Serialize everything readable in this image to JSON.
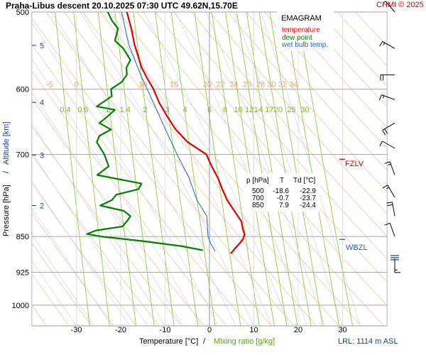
{
  "header": {
    "title": "Praha-Libus   descent   20.10.2025 07:30 UTC   49.62N,15.70E",
    "copyright": "CHMI © 2025"
  },
  "legend": {
    "title": "EMAGRAM",
    "items": [
      {
        "label": "temperature",
        "color": "#ff0000"
      },
      {
        "label": "dew point",
        "color": "#008000"
      },
      {
        "label": "wet bulb temp.",
        "color": "#1a5fd0"
      }
    ]
  },
  "levels_table": {
    "header": [
      "p [hPa]",
      "T",
      "Td [°C]"
    ],
    "rows": [
      [
        "500",
        "-18.6",
        "-22.9"
      ],
      [
        "700",
        "-0.7",
        "-23.7"
      ],
      [
        "850",
        "7.9",
        "-24.4"
      ]
    ]
  },
  "markers": {
    "fzlv": "FZLV",
    "wbzl": "WBZL",
    "lrl": "LRL: 1114 m ASL"
  },
  "chart_data": {
    "type": "line",
    "title": "Praha-Libus descent 20.10.2025 07:30 UTC 49.62N,15.70E",
    "xlabel": "Temperature [°C]",
    "xlabel2": "Mixing ratio [g/kg]",
    "xlabel_sep": "/",
    "ylabel": "Pressure [hPa]",
    "ylabel2": "Altitude [km]",
    "ylabel_sep": "/",
    "xlim": [
      -40,
      40
    ],
    "ylim": [
      1050,
      500
    ],
    "pressure_ticks": [
      500,
      600,
      700,
      850,
      925,
      1000
    ],
    "temperature_ticks": [
      -30,
      -20,
      -10,
      0,
      10,
      20,
      30
    ],
    "altitude_ticks": [
      {
        "label": "2",
        "p": 790
      },
      {
        "label": "3",
        "p": 701
      },
      {
        "label": "4",
        "p": 619
      },
      {
        "label": "5",
        "p": 541
      }
    ],
    "dry_adiabat_labels": [
      "-5",
      "0",
      "10",
      "15",
      "20",
      "22",
      "24",
      "26",
      "28",
      "30",
      "32",
      "34"
    ],
    "dry_adiabat_label_temps": [
      -36,
      -30,
      -15,
      -8,
      -0.5,
      2.5,
      5.5,
      8.5,
      11.5,
      14,
      16.5,
      19
    ],
    "mixing_ratio_labels": [
      "0.4",
      "0.6",
      "1",
      "1.4",
      "2",
      "3",
      "4",
      "6",
      "8",
      "10",
      "12",
      "14",
      "17",
      "20",
      "25",
      "30"
    ],
    "mixing_ratio_label_temps": [
      -32.5,
      -28.5,
      -23,
      -19,
      -14.5,
      -9.5,
      -5.5,
      0,
      3.5,
      6.5,
      9,
      11,
      13.5,
      15.5,
      18.5,
      21.5
    ],
    "series": [
      {
        "name": "temperature",
        "color": "#e00000",
        "points": [
          [
            500,
            -18.6
          ],
          [
            520,
            -17.6
          ],
          [
            540,
            -16.9
          ],
          [
            556,
            -16.0
          ],
          [
            570,
            -15.3
          ],
          [
            585,
            -14.0
          ],
          [
            600,
            -12.6
          ],
          [
            620,
            -11.3
          ],
          [
            640,
            -9.5
          ],
          [
            660,
            -7.6
          ],
          [
            680,
            -4.9
          ],
          [
            700,
            -0.7
          ],
          [
            720,
            0.5
          ],
          [
            740,
            1.9
          ],
          [
            760,
            2.9
          ],
          [
            780,
            4.0
          ],
          [
            800,
            5.6
          ],
          [
            820,
            7.2
          ],
          [
            835,
            7.5
          ],
          [
            845,
            7.9
          ],
          [
            855,
            7.6
          ],
          [
            865,
            6.7
          ],
          [
            875,
            5.7
          ],
          [
            885,
            4.8
          ]
        ]
      },
      {
        "name": "dew point",
        "color": "#008000",
        "points": [
          [
            500,
            -22.9
          ],
          [
            510,
            -22.0
          ],
          [
            520,
            -20.6
          ],
          [
            535,
            -21.3
          ],
          [
            545,
            -19.4
          ],
          [
            560,
            -17.8
          ],
          [
            570,
            -18.7
          ],
          [
            580,
            -18.6
          ],
          [
            590,
            -19.8
          ],
          [
            600,
            -22.2
          ],
          [
            610,
            -22.0
          ],
          [
            625,
            -25.4
          ],
          [
            630,
            -21.3
          ],
          [
            640,
            -23.0
          ],
          [
            650,
            -24.8
          ],
          [
            660,
            -22.2
          ],
          [
            670,
            -24.8
          ],
          [
            680,
            -25.4
          ],
          [
            700,
            -23.7
          ],
          [
            720,
            -22.7
          ],
          [
            735,
            -25.3
          ],
          [
            750,
            -15.3
          ],
          [
            760,
            -16.0
          ],
          [
            770,
            -21.0
          ],
          [
            780,
            -22.0
          ],
          [
            790,
            -24.6
          ],
          [
            800,
            -19.3
          ],
          [
            810,
            -17.8
          ],
          [
            820,
            -18.6
          ],
          [
            830,
            -19.6
          ],
          [
            838,
            -25.6
          ],
          [
            845,
            -27.6
          ],
          [
            850,
            -24.4
          ],
          [
            860,
            -14.3
          ],
          [
            870,
            -6.0
          ],
          [
            878,
            -1.5
          ]
        ]
      },
      {
        "name": "wet bulb temp.",
        "color": "#1a5fd0",
        "points": [
          [
            500,
            -19.8
          ],
          [
            540,
            -18.2
          ],
          [
            580,
            -15.5
          ],
          [
            620,
            -12.6
          ],
          [
            660,
            -9.9
          ],
          [
            700,
            -7.3
          ],
          [
            740,
            -4.6
          ],
          [
            780,
            -2.8
          ],
          [
            810,
            -0.6
          ],
          [
            840,
            -0.4
          ],
          [
            850,
            -0.3
          ],
          [
            865,
            0.3
          ],
          [
            880,
            1.3
          ]
        ]
      }
    ],
    "fzlv_p": 708,
    "wbzl_p": 856,
    "wind_barbs_label": "wind",
    "wind_barbs": [
      {
        "p": 500,
        "dir": 320,
        "speed": 5
      },
      {
        "p": 545,
        "dir": 300,
        "speed": 15
      },
      {
        "p": 580,
        "dir": 270,
        "speed": 20
      },
      {
        "p": 615,
        "dir": 290,
        "speed": 15
      },
      {
        "p": 650,
        "dir": 240,
        "speed": 20
      },
      {
        "p": 690,
        "dir": 300,
        "speed": 10
      },
      {
        "p": 735,
        "dir": 340,
        "speed": 15
      },
      {
        "p": 775,
        "dir": 330,
        "speed": 15
      },
      {
        "p": 810,
        "dir": 350,
        "speed": 20
      },
      {
        "p": 850,
        "dir": 340,
        "speed": 10
      },
      {
        "p": 895,
        "dir": 180,
        "speed": 15
      }
    ]
  }
}
